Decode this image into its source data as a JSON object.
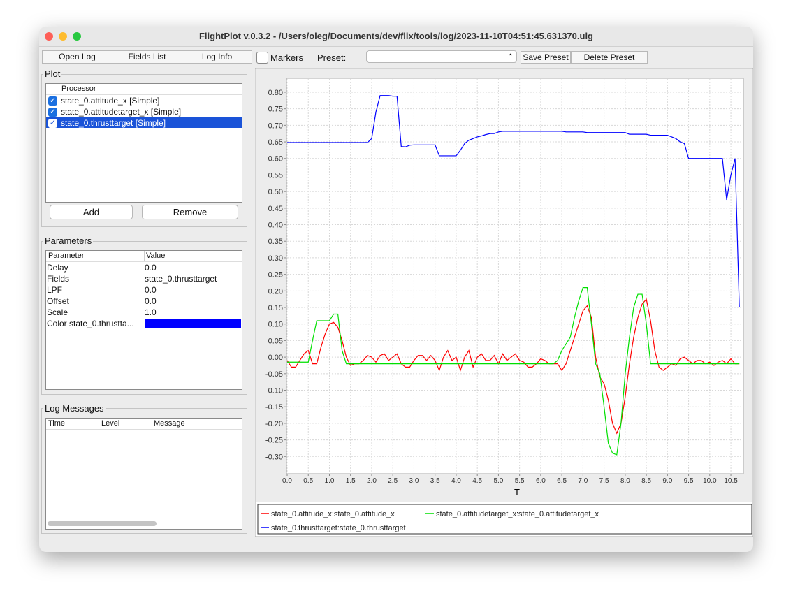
{
  "window": {
    "title": "FlightPlot v.0.3.2 - /Users/oleg/Documents/dev/flix/tools/log/2023-11-10T04:51:45.631370.ulg"
  },
  "toolbar": {
    "open_log": "Open Log",
    "fields_list": "Fields List",
    "log_info": "Log Info",
    "markers": "Markers",
    "preset": "Preset:",
    "save_preset": "Save Preset",
    "delete_preset": "Delete Preset"
  },
  "plot_panel": {
    "title": "Plot",
    "header": "Processor",
    "items": [
      "state_0.attitude_x [Simple]",
      "state_0.attitudetarget_x [Simple]",
      "state_0.thrusttarget [Simple]"
    ],
    "add": "Add",
    "remove": "Remove"
  },
  "parameters": {
    "title": "Parameters",
    "columns": [
      "Parameter",
      "Value"
    ],
    "rows": [
      [
        "Delay",
        "0.0"
      ],
      [
        "Fields",
        "state_0.thrusttarget"
      ],
      [
        "LPF",
        "0.0"
      ],
      [
        "Offset",
        "0.0"
      ],
      [
        "Scale",
        "1.0"
      ],
      [
        "Color state_0.thrustta...",
        ""
      ]
    ]
  },
  "log_messages": {
    "title": "Log Messages",
    "columns": [
      "Time",
      "Level",
      "Message"
    ]
  },
  "chart_data": {
    "type": "line",
    "xlabel": "T",
    "grid": true,
    "xlim": [
      0,
      10.78
    ],
    "ylim": [
      -0.35,
      0.84
    ],
    "xticks": [
      {
        "value": 0,
        "label": "0.0"
      },
      0.5,
      {
        "value": 1,
        "label": "1.0"
      },
      1.5,
      {
        "value": 2,
        "label": "2.0"
      },
      2.5,
      {
        "value": 3,
        "label": "3.0"
      },
      3.5,
      {
        "value": 4,
        "label": "4.0"
      },
      4.5,
      {
        "value": 5,
        "label": "5.0"
      },
      5.5,
      {
        "value": 6,
        "label": "6.0"
      },
      6.5,
      {
        "value": 7,
        "label": "7.0"
      },
      7.5,
      {
        "value": 8,
        "label": "8.0"
      },
      8.5,
      {
        "value": 9,
        "label": "9.0"
      },
      9.5,
      {
        "value": 10,
        "label": "10.0"
      },
      10.5
    ],
    "yticks": [
      {
        "value": 0.8,
        "label": "0.80"
      },
      {
        "value": 0.75,
        "label": "0.75"
      },
      {
        "value": 0.7,
        "label": "0.70"
      },
      {
        "value": 0.65,
        "label": "0.65"
      },
      {
        "value": 0.6,
        "label": "0.60"
      },
      {
        "value": 0.55,
        "label": "0.55"
      },
      {
        "value": 0.5,
        "label": "0.50"
      },
      {
        "value": 0.45,
        "label": "0.45"
      },
      {
        "value": 0.4,
        "label": "0.40"
      },
      {
        "value": 0.35,
        "label": "0.35"
      },
      {
        "value": 0.3,
        "label": "0.30"
      },
      {
        "value": 0.25,
        "label": "0.25"
      },
      {
        "value": 0.2,
        "label": "0.20"
      },
      {
        "value": 0.15,
        "label": "0.15"
      },
      {
        "value": 0.1,
        "label": "0.10"
      },
      {
        "value": 0.05,
        "label": "0.05"
      },
      {
        "value": 0,
        "label": "0.00"
      },
      {
        "value": -0.05,
        "label": "-0.05"
      },
      {
        "value": -0.1,
        "label": "-0.10"
      },
      {
        "value": -0.15,
        "label": "-0.15"
      },
      {
        "value": -0.2,
        "label": "-0.20"
      },
      {
        "value": -0.25,
        "label": "-0.25"
      },
      {
        "value": -0.3,
        "label": "-0.30"
      }
    ],
    "x": [
      0,
      0.1,
      0.2,
      0.3,
      0.4,
      0.5,
      0.6,
      0.7,
      0.8,
      0.9,
      1,
      1.1,
      1.2,
      1.3,
      1.4,
      1.5,
      1.6,
      1.7,
      1.8,
      1.9,
      2,
      2.1,
      2.2,
      2.3,
      2.4,
      2.5,
      2.6,
      2.7,
      2.8,
      2.9,
      3,
      3.1,
      3.2,
      3.3,
      3.4,
      3.5,
      3.6,
      3.7,
      3.8,
      3.9,
      4,
      4.1,
      4.2,
      4.3,
      4.4,
      4.5,
      4.6,
      4.7,
      4.8,
      4.9,
      5,
      5.1,
      5.2,
      5.3,
      5.4,
      5.5,
      5.6,
      5.7,
      5.8,
      5.9,
      6,
      6.1,
      6.2,
      6.3,
      6.4,
      6.5,
      6.6,
      6.7,
      6.8,
      6.9,
      7,
      7.1,
      7.2,
      7.3,
      7.4,
      7.5,
      7.6,
      7.7,
      7.8,
      7.9,
      8,
      8.1,
      8.2,
      8.3,
      8.4,
      8.5,
      8.6,
      8.7,
      8.8,
      8.9,
      9,
      9.1,
      9.2,
      9.3,
      9.4,
      9.5,
      9.6,
      9.7,
      9.8,
      9.9,
      10,
      10.1,
      10.2,
      10.3,
      10.4,
      10.5,
      10.6,
      10.7
    ],
    "series": [
      {
        "name": "state_0.attitude_x:state_0.attitude_x",
        "color": "#ff0000",
        "values": [
          -0.01,
          -0.03,
          -0.03,
          -0.01,
          0.01,
          0.02,
          -0.02,
          -0.02,
          0.03,
          0.07,
          0.1,
          0.105,
          0.09,
          0.05,
          0,
          -0.025,
          -0.02,
          -0.02,
          -0.01,
          0.005,
          0,
          -0.015,
          0.005,
          0.01,
          -0.01,
          0,
          0.01,
          -0.02,
          -0.03,
          -0.03,
          -0.01,
          0.005,
          0.005,
          -0.01,
          0.005,
          -0.01,
          -0.04,
          0,
          0.02,
          -0.01,
          0,
          -0.04,
          0,
          0.02,
          -0.03,
          0,
          0.01,
          -0.01,
          -0.01,
          0.005,
          -0.02,
          0.01,
          -0.01,
          0,
          0.01,
          -0.01,
          -0.015,
          -0.03,
          -0.03,
          -0.02,
          -0.005,
          -0.01,
          -0.02,
          -0.02,
          -0.02,
          -0.04,
          -0.02,
          0.02,
          0.06,
          0.1,
          0.14,
          0.155,
          0.12,
          0,
          -0.06,
          -0.08,
          -0.13,
          -0.2,
          -0.23,
          -0.2,
          -0.12,
          -0.02,
          0.06,
          0.12,
          0.16,
          0.175,
          0.11,
          0.02,
          -0.03,
          -0.04,
          -0.03,
          -0.02,
          -0.025,
          -0.005,
          0,
          -0.01,
          -0.02,
          -0.01,
          -0.01,
          -0.02,
          -0.015,
          -0.025,
          -0.015,
          -0.01,
          -0.02,
          -0.005,
          -0.02,
          -0.02
        ]
      },
      {
        "name": "state_0.attitudetarget_x:state_0.attitudetarget_x",
        "color": "#00e000",
        "values": [
          -0.015,
          -0.015,
          -0.015,
          -0.015,
          -0.015,
          -0.015,
          0.05,
          0.11,
          0.11,
          0.11,
          0.11,
          0.13,
          0.13,
          0.02,
          -0.02,
          -0.02,
          -0.02,
          -0.02,
          -0.02,
          -0.02,
          -0.02,
          -0.02,
          -0.02,
          -0.02,
          -0.02,
          -0.02,
          -0.02,
          -0.02,
          -0.02,
          -0.02,
          -0.02,
          -0.02,
          -0.02,
          -0.02,
          -0.02,
          -0.02,
          -0.02,
          -0.02,
          -0.02,
          -0.02,
          -0.02,
          -0.02,
          -0.02,
          -0.02,
          -0.02,
          -0.02,
          -0.02,
          -0.02,
          -0.02,
          -0.02,
          -0.02,
          -0.02,
          -0.02,
          -0.02,
          -0.02,
          -0.02,
          -0.02,
          -0.02,
          -0.02,
          -0.02,
          -0.02,
          -0.02,
          -0.02,
          -0.02,
          -0.01,
          0.02,
          0.04,
          0.06,
          0.12,
          0.17,
          0.21,
          0.21,
          0.1,
          -0.02,
          -0.05,
          -0.15,
          -0.26,
          -0.29,
          -0.295,
          -0.2,
          -0.05,
          0.06,
          0.15,
          0.19,
          0.19,
          0.1,
          -0.02,
          -0.02,
          -0.02,
          -0.02,
          -0.02,
          -0.02,
          -0.02,
          -0.02,
          -0.02,
          -0.02,
          -0.02,
          -0.02,
          -0.02,
          -0.02,
          -0.02,
          -0.02,
          -0.02,
          -0.02,
          -0.02,
          -0.02,
          -0.02,
          -0.02
        ]
      },
      {
        "name": "state_0.thrusttarget:state_0.thrusttarget",
        "color": "#0000ff",
        "values": [
          0.648,
          0.648,
          0.648,
          0.648,
          0.648,
          0.648,
          0.648,
          0.648,
          0.648,
          0.648,
          0.648,
          0.648,
          0.648,
          0.648,
          0.648,
          0.648,
          0.648,
          0.648,
          0.648,
          0.648,
          0.66,
          0.74,
          0.79,
          0.79,
          0.79,
          0.788,
          0.788,
          0.636,
          0.635,
          0.64,
          0.641,
          0.641,
          0.641,
          0.641,
          0.641,
          0.641,
          0.608,
          0.608,
          0.608,
          0.608,
          0.608,
          0.625,
          0.645,
          0.655,
          0.66,
          0.665,
          0.668,
          0.672,
          0.675,
          0.675,
          0.68,
          0.682,
          0.682,
          0.682,
          0.682,
          0.682,
          0.682,
          0.682,
          0.682,
          0.682,
          0.682,
          0.682,
          0.682,
          0.682,
          0.682,
          0.682,
          0.68,
          0.68,
          0.68,
          0.68,
          0.68,
          0.678,
          0.678,
          0.678,
          0.678,
          0.678,
          0.678,
          0.678,
          0.678,
          0.678,
          0.678,
          0.673,
          0.673,
          0.673,
          0.673,
          0.673,
          0.67,
          0.67,
          0.67,
          0.67,
          0.67,
          0.665,
          0.66,
          0.65,
          0.645,
          0.6,
          0.6,
          0.6,
          0.6,
          0.6,
          0.6,
          0.6,
          0.6,
          0.6,
          0.475,
          0.55,
          0.6,
          0.15
        ]
      }
    ]
  }
}
